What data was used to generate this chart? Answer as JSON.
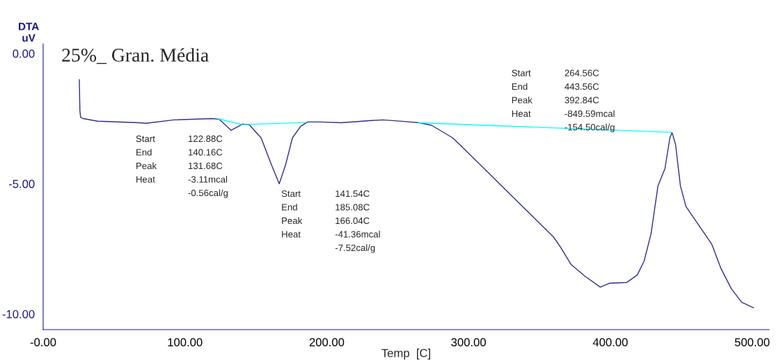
{
  "chart_data": {
    "type": "line",
    "title": "25%_ Gran. Média",
    "xlabel": "Temp  [C]",
    "ylabel": "DTA\nuV",
    "xlim": [
      0,
      512
    ],
    "ylim": [
      -10.6,
      0.37
    ],
    "xticks": [
      {
        "value": 0,
        "label": "-0.00"
      },
      {
        "value": 100,
        "label": "100.00"
      },
      {
        "value": 200,
        "label": "200.00"
      },
      {
        "value": 300,
        "label": "300.00"
      },
      {
        "value": 400,
        "label": "400.00"
      },
      {
        "value": 500,
        "label": "500.00"
      }
    ],
    "yticks": [
      {
        "value": 0,
        "label": "0.00"
      },
      {
        "value": -5,
        "label": "-5.00"
      },
      {
        "value": -10,
        "label": "-10.00"
      }
    ],
    "grid": false,
    "legend": false,
    "marker": "none",
    "line_style": "solid",
    "series": [
      {
        "color": "#2e2e8c",
        "x": [
          25.5,
          25.9,
          26.4,
          28.3,
          38.3,
          67.8,
          72.7,
          92.3,
          119.4,
          124.3,
          132.6,
          140.6,
          145.4,
          153.7,
          161.1,
          166.5,
          170.9,
          175.8,
          181.7,
          186.6,
          195.5,
          210.2,
          229.9,
          239.7,
          254.4,
          265.2,
          274.0,
          288.8,
          296.2,
          313.4,
          333.0,
          345.3,
          360.0,
          365.0,
          372.3,
          382.1,
          392.9,
          399.3,
          411.6,
          419.0,
          423.8,
          428.7,
          433.6,
          438.5,
          442.0,
          443.5,
          446.0,
          449.4,
          453.3,
          463.2,
          471.5,
          477.9,
          485.3,
          492.6,
          501.0
        ],
        "values": [
          -1.0,
          -2.18,
          -2.45,
          -2.5,
          -2.6,
          -2.66,
          -2.68,
          -2.55,
          -2.5,
          -2.53,
          -2.95,
          -2.71,
          -2.74,
          -3.24,
          -4.29,
          -5.0,
          -4.29,
          -3.24,
          -2.79,
          -2.63,
          -2.63,
          -2.66,
          -2.58,
          -2.55,
          -2.61,
          -2.66,
          -2.76,
          -3.24,
          -3.63,
          -4.55,
          -5.6,
          -6.26,
          -7.05,
          -7.45,
          -8.1,
          -8.55,
          -8.97,
          -8.82,
          -8.79,
          -8.5,
          -7.97,
          -6.92,
          -5.08,
          -4.42,
          -3.24,
          -3.03,
          -3.5,
          -5.08,
          -5.87,
          -6.66,
          -7.32,
          -8.24,
          -9.03,
          -9.55,
          -9.76
        ]
      },
      {
        "color": "#00ffff",
        "x": [
          122.88,
          140.16
        ],
        "values": [
          -2.5,
          -2.73
        ]
      },
      {
        "color": "#00ffff",
        "x": [
          141.54,
          185.08
        ],
        "values": [
          -2.73,
          -2.65
        ]
      },
      {
        "color": "#00ffff",
        "x": [
          264.56,
          443.56
        ],
        "values": [
          -2.66,
          -3.03
        ]
      }
    ],
    "annotations": [
      "Start\nEnd\nPeak\nHeat",
      "122.88C\n140.16C\n131.68C\n-3.11mcal\n-0.56cal/g",
      "Start\nEnd\nPeak\nHeat",
      "141.54C\n185.08C\n166.04C\n-41.36mcal\n-7.52cal/g",
      "Start\nEnd\nPeak\nHeat",
      "264.56C\n443.56C\n392.84C\n-849.59mcal\n-154.50cal/g"
    ]
  }
}
